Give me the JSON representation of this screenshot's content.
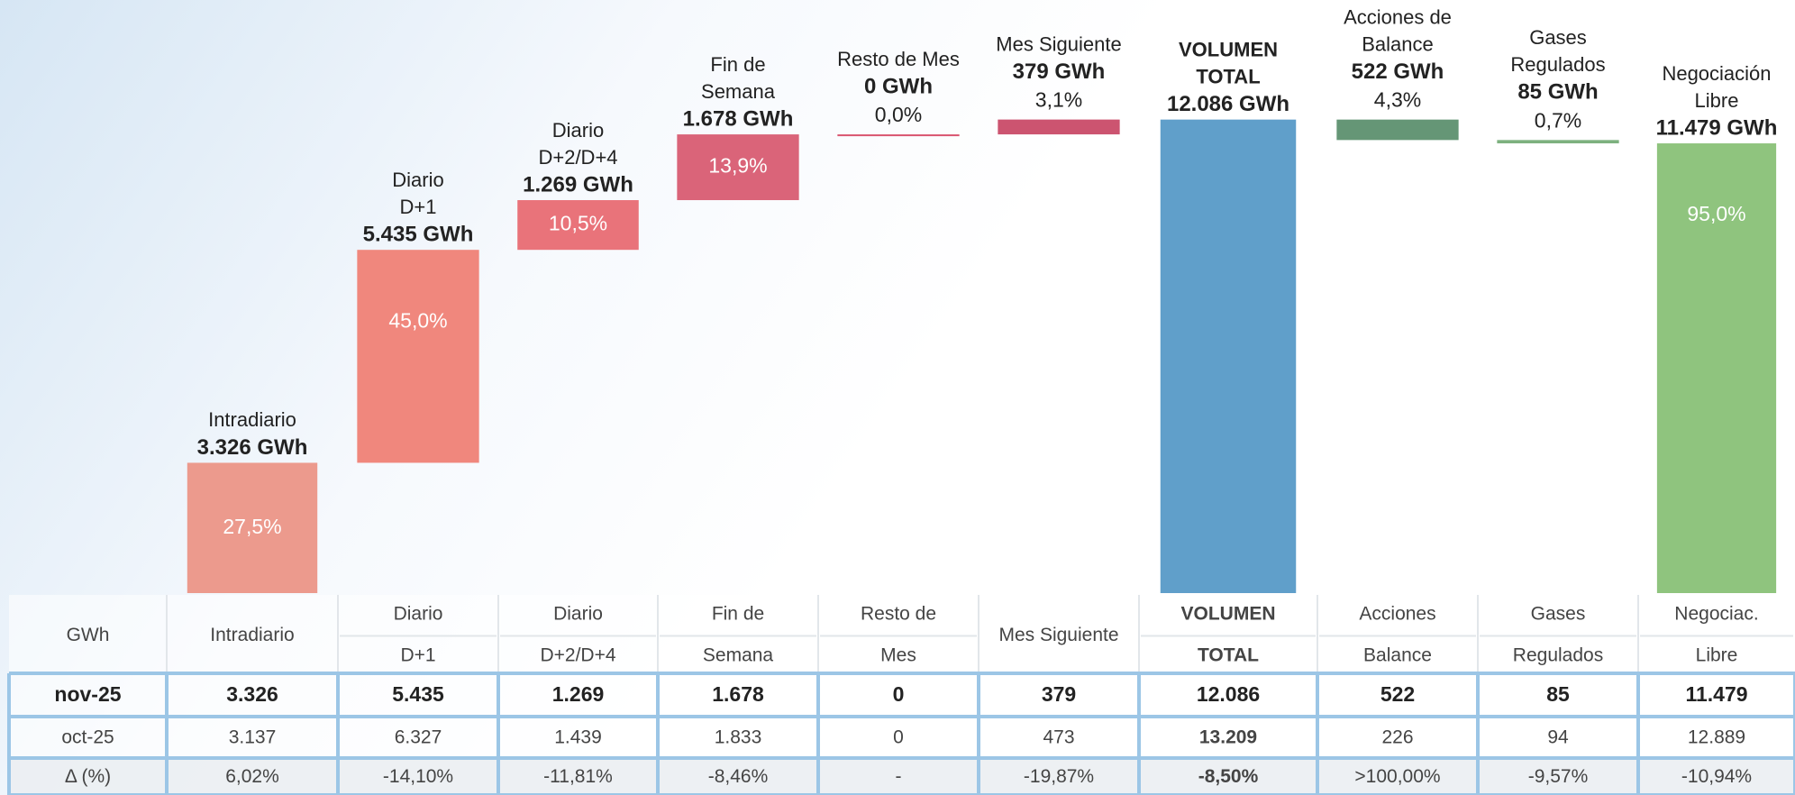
{
  "chart_data": {
    "type": "waterfall",
    "categories": [
      [
        "Intradiario"
      ],
      [
        "Diario",
        "D+1"
      ],
      [
        "Diario",
        "D+2/D+4"
      ],
      [
        "Fin de",
        "Semana"
      ],
      [
        "Resto de Mes"
      ],
      [
        "Mes Siguiente"
      ],
      [
        "VOLUMEN",
        "TOTAL"
      ],
      [
        "Acciones de",
        "Balance"
      ],
      [
        "Gases",
        "Regulados"
      ],
      [
        "Negociación",
        "Libre"
      ]
    ],
    "measure": [
      "relative",
      "relative",
      "relative",
      "relative",
      "relative",
      "relative",
      "total",
      "decrease",
      "decrease",
      "total"
    ],
    "bold_categories": [
      6
    ],
    "values": [
      3326,
      5435,
      1269,
      1678,
      0,
      379,
      12086,
      522,
      85,
      11479
    ],
    "value_labels": [
      "3.326 GWh",
      "5.435 GWh",
      "1.269 GWh",
      "1.678 GWh",
      "0 GWh",
      "379 GWh",
      "12.086 GWh",
      "522 GWh",
      "85 GWh",
      "11.479 GWh"
    ],
    "percentages": [
      27.5,
      45.0,
      10.5,
      13.9,
      0.0,
      3.1,
      null,
      4.3,
      0.7,
      95.0
    ],
    "percentage_labels": [
      "27,5%",
      "45,0%",
      "10,5%",
      "13,9%",
      "0,0%",
      "3,1%",
      null,
      "4,3%",
      "0,7%",
      "95,0%"
    ],
    "colors": [
      "#ec9a8d",
      "#f0877d",
      "#e9737a",
      "#da6479",
      "#d95570",
      "#cc5470",
      "#609fca",
      "#659676",
      "#7db17f",
      "#8fc47e"
    ],
    "ylim": [
      0,
      15000
    ]
  },
  "table": {
    "columns": [
      [
        "GWh"
      ],
      [
        "Intradiario"
      ],
      [
        "Diario",
        "D+1"
      ],
      [
        "Diario",
        "D+2/D+4"
      ],
      [
        "Fin de",
        "Semana"
      ],
      [
        "Resto de",
        "Mes"
      ],
      [
        "Mes Siguiente"
      ],
      [
        "VOLUMEN",
        "TOTAL"
      ],
      [
        "Acciones",
        "Balance"
      ],
      [
        "Gases",
        "Regulados"
      ],
      [
        "Negociac.",
        "Libre"
      ]
    ],
    "rows": [
      [
        "nov-25",
        "3.326",
        "5.435",
        "1.269",
        "1.678",
        "0",
        "379",
        "12.086",
        "522",
        "85",
        "11.479"
      ],
      [
        "oct-25",
        "3.137",
        "6.327",
        "1.439",
        "1.833",
        "0",
        "473",
        "13.209",
        "226",
        "94",
        "12.889"
      ],
      [
        "Δ (%)",
        "6,02%",
        "-14,10%",
        "-11,81%",
        "-8,46%",
        "-",
        "-19,87%",
        "-8,50%",
        ">100,00%",
        "-9,57%",
        "-10,94%"
      ]
    ]
  }
}
